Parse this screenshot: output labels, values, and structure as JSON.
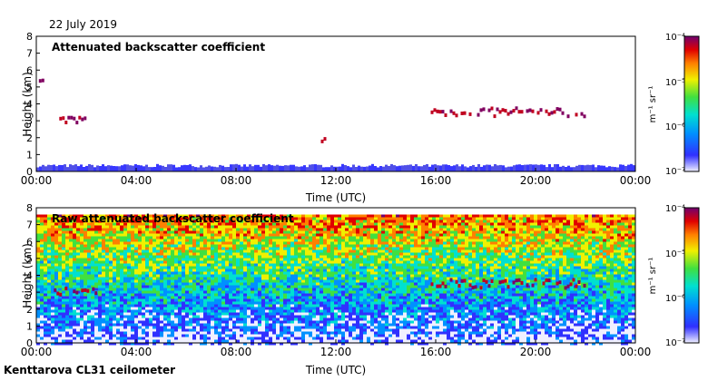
{
  "date": "22 July 2019",
  "station": "Kenttarova CL31 ceilometer",
  "colorbar": {
    "unit": "m⁻¹ sr⁻¹",
    "ticks": [
      "10⁻⁴",
      "10⁻⁵",
      "10⁻⁶",
      "10⁻⁷"
    ]
  },
  "chart_data": [
    {
      "type": "heatmap",
      "title": "Attenuated backscatter coefficient",
      "xlabel": "Time (UTC)",
      "ylabel": "Height (km)",
      "xlim": [
        0,
        24
      ],
      "ylim": [
        0,
        8
      ],
      "x_ticks": [
        "00:00",
        "04:00",
        "08:00",
        "12:00",
        "16:00",
        "20:00",
        "00:00"
      ],
      "y_ticks": [
        "0",
        "1",
        "2",
        "3",
        "4",
        "5",
        "6",
        "7",
        "8"
      ],
      "colorbar_range": [
        1e-07,
        0.0001
      ],
      "scale": "log",
      "features": [
        {
          "name": "near-surface layer",
          "t_start": 0,
          "t_end": 24,
          "h_low": 0,
          "h_high": 0.4,
          "level": "low"
        },
        {
          "name": "cloud layer",
          "t_start": 0.7,
          "t_end": 2.4,
          "height": 3.0,
          "level": "high"
        },
        {
          "name": "isolated signal",
          "t_start": 0.1,
          "t_end": 0.4,
          "height": 5.2,
          "level": "high"
        },
        {
          "name": "isolated signal",
          "t_start": 11.4,
          "t_end": 11.6,
          "height": 1.8,
          "level": "high"
        },
        {
          "name": "cloud layer",
          "t_start": 15.8,
          "t_end": 22.0,
          "height": 3.5,
          "level": "high"
        }
      ]
    },
    {
      "type": "heatmap",
      "title": "Raw attenuated backscatter coefficient",
      "xlabel": "Time (UTC)",
      "ylabel": "Height (km)",
      "xlim": [
        0,
        24
      ],
      "ylim": [
        0,
        8
      ],
      "x_ticks": [
        "00:00",
        "04:00",
        "08:00",
        "12:00",
        "16:00",
        "20:00",
        "00:00"
      ],
      "y_ticks": [
        "0",
        "1",
        "2",
        "3",
        "4",
        "5",
        "6",
        "7",
        "8"
      ],
      "colorbar_range": [
        1e-07,
        0.0001
      ],
      "scale": "log",
      "features": [
        {
          "name": "noise field increasing with height",
          "t_start": 0,
          "t_end": 24,
          "h_low": 0,
          "h_high": 7.6,
          "level": "noise"
        },
        {
          "name": "cloud layer",
          "t_start": 0.7,
          "t_end": 2.4,
          "height": 3.0,
          "level": "high"
        },
        {
          "name": "cloud layer",
          "t_start": 15.8,
          "t_end": 22.0,
          "height": 3.5,
          "level": "high"
        }
      ]
    }
  ]
}
